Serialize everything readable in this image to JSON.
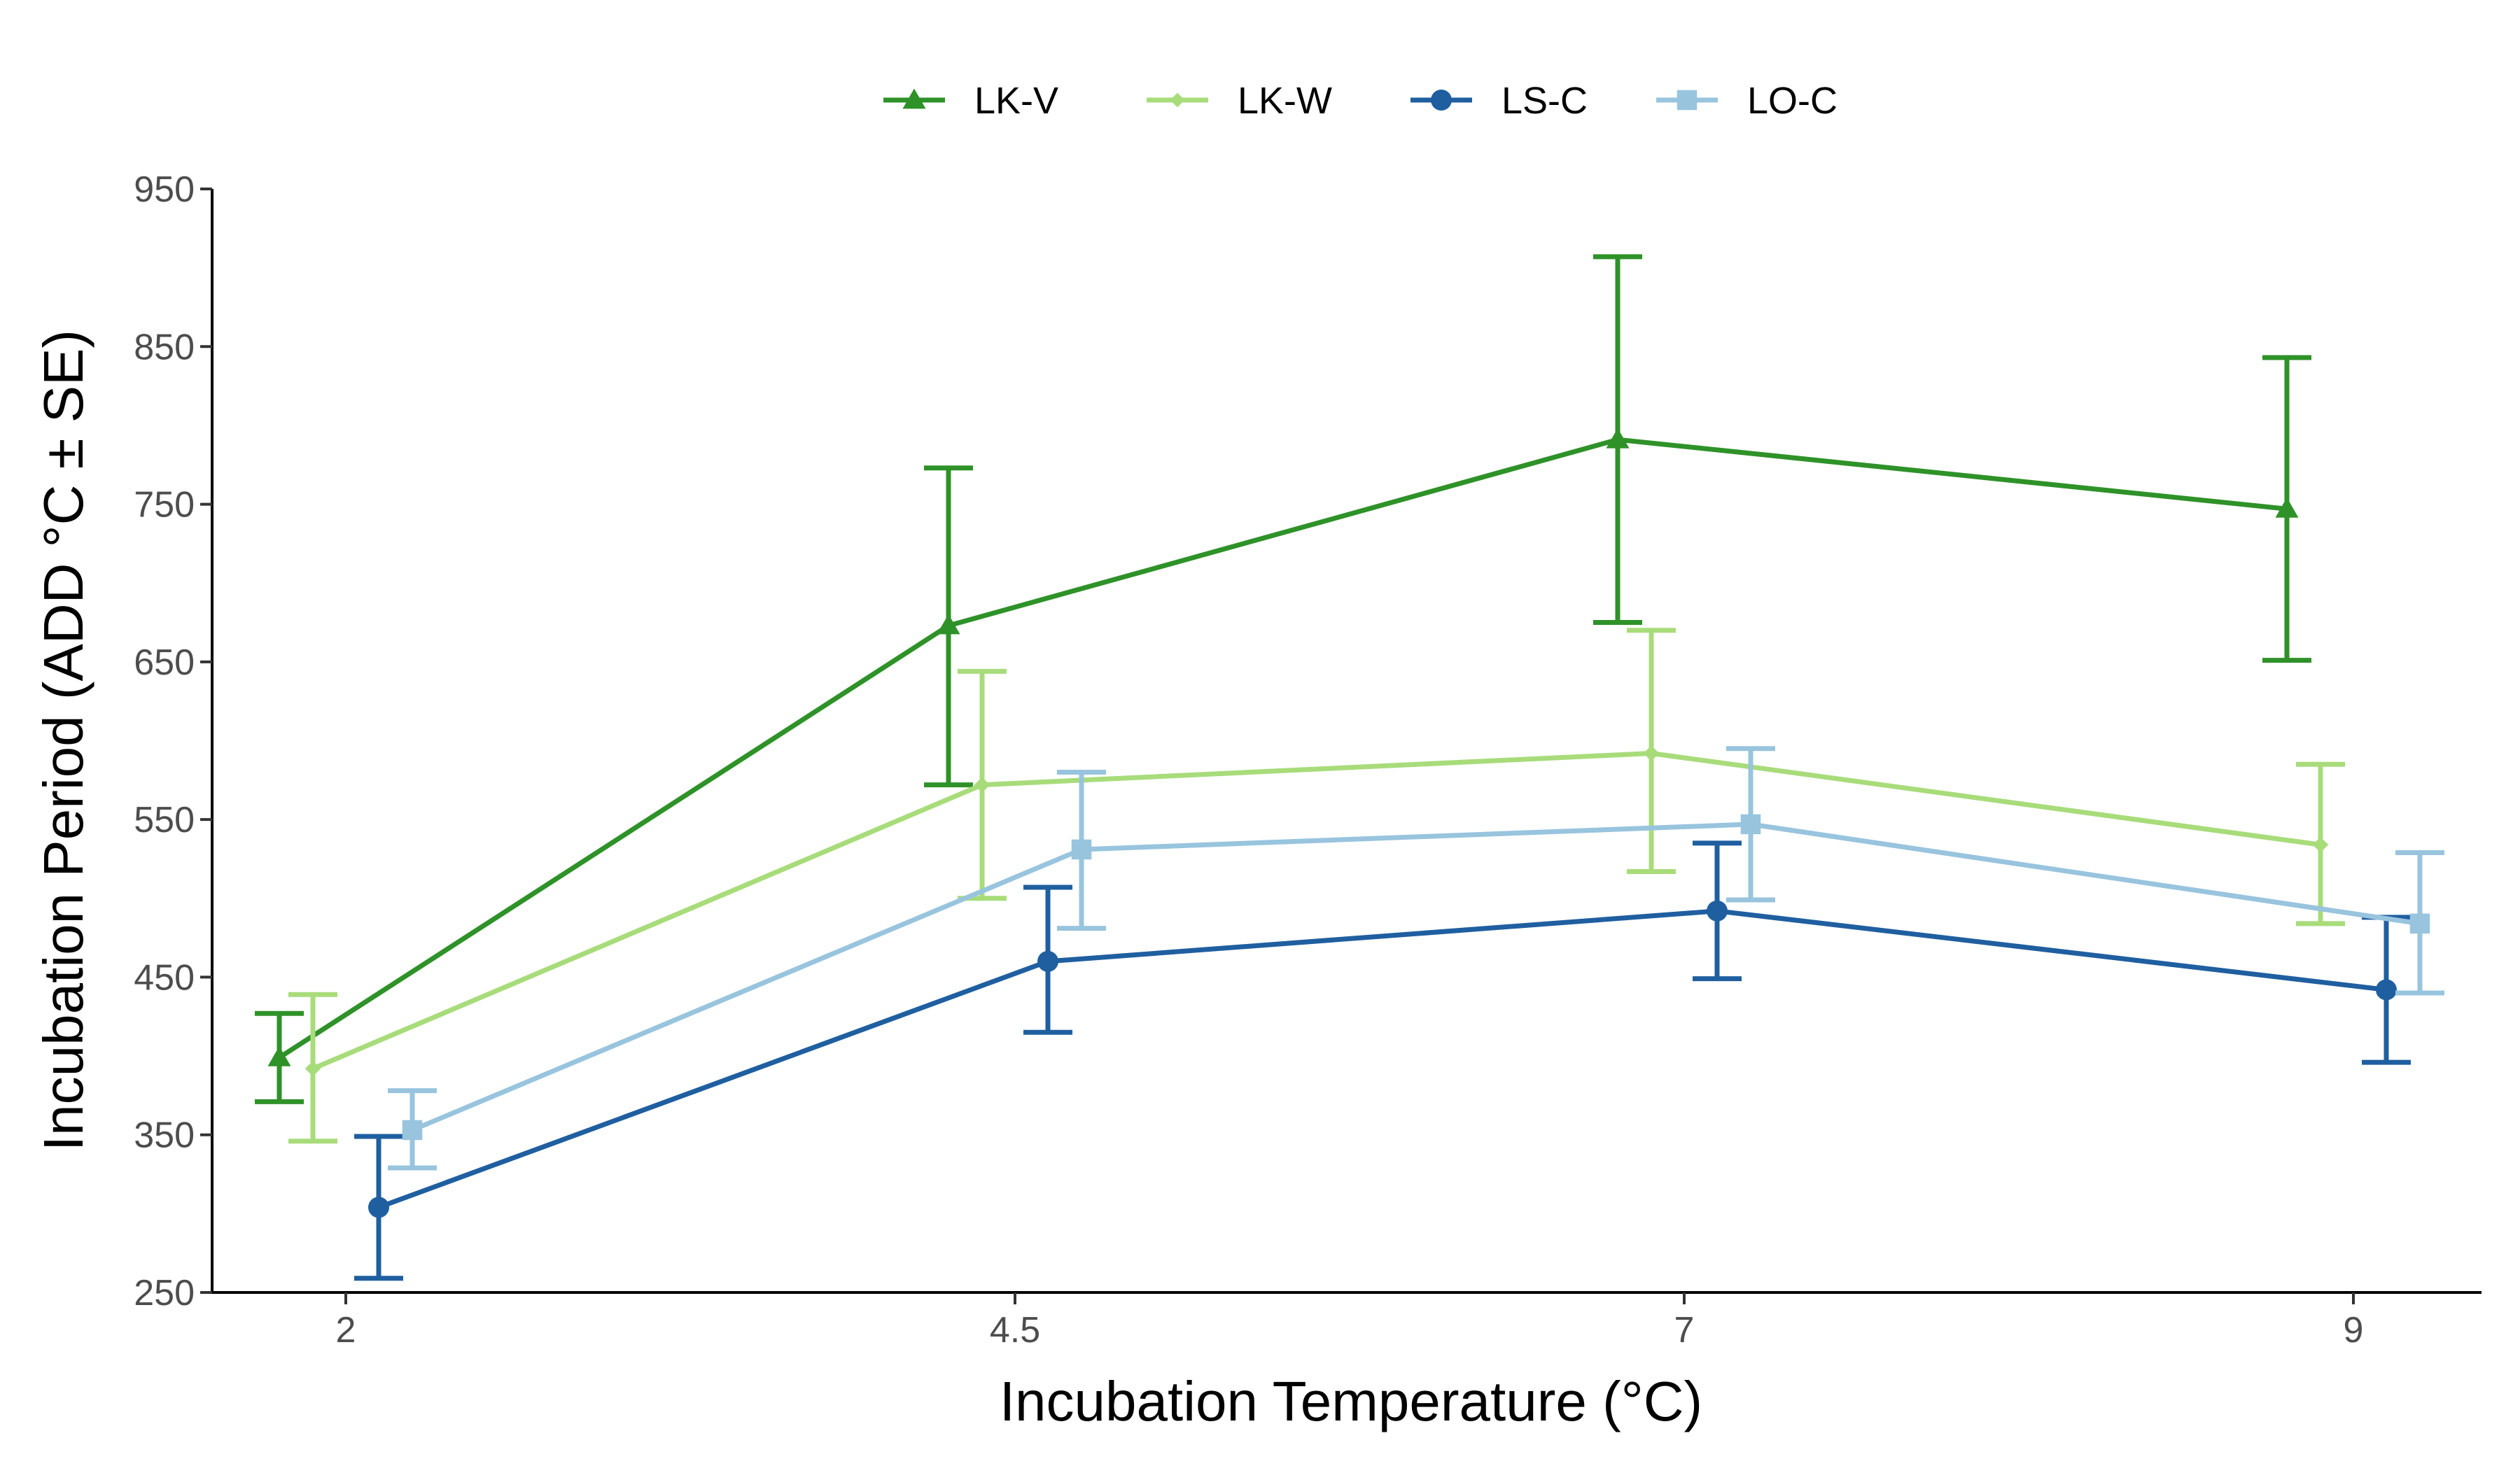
{
  "chart_data": {
    "type": "line",
    "title": "",
    "xlabel": "Incubation Temperature (°C)",
    "ylabel": "Incubation Period (ADD °C ± SE)",
    "x_categories": [
      "2",
      "4.5",
      "7",
      "9"
    ],
    "ylim": [
      250,
      950
    ],
    "yticks": [
      "250",
      "350",
      "450",
      "550",
      "650",
      "750",
      "850",
      "950"
    ],
    "grid": false,
    "legend_position": "top",
    "error_bars": "SE",
    "series": [
      {
        "name": "LK-V",
        "color": "#2e9228",
        "marker": "triangle",
        "values": [
          399,
          673,
          791,
          747
        ],
        "err_low": [
          371,
          572,
          675,
          651
        ],
        "err_high": [
          427,
          773,
          907,
          843
        ]
      },
      {
        "name": "LK-W",
        "color": "#a8dc7a",
        "marker": "diamond",
        "values": [
          392,
          572,
          592,
          534
        ],
        "err_low": [
          346,
          500,
          517,
          484
        ],
        "err_high": [
          439,
          644,
          670,
          585
        ]
      },
      {
        "name": "LS-C",
        "color": "#1f5fa0",
        "marker": "circle",
        "values": [
          304,
          460,
          492,
          442
        ],
        "err_low": [
          259,
          415,
          449,
          396
        ],
        "err_high": [
          349,
          507,
          535,
          488
        ]
      },
      {
        "name": "LO-C",
        "color": "#98c4de",
        "marker": "square",
        "values": [
          353,
          531,
          547,
          484
        ],
        "err_low": [
          329,
          481,
          499,
          440
        ],
        "err_high": [
          378,
          580,
          595,
          529
        ]
      }
    ]
  }
}
